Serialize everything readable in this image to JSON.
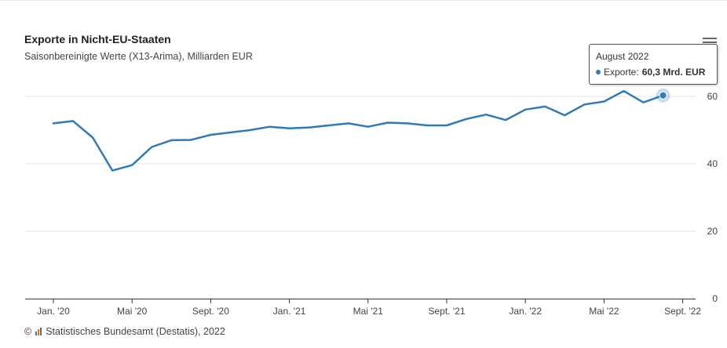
{
  "header": {
    "title": "Exporte in Nicht-EU-Staaten",
    "subtitle": "Saisonbereinigte Werte (X13-Arima), Milliarden EUR"
  },
  "credit": {
    "symbol": "©",
    "text": "Statistisches Bundesamt (Destatis), 2022"
  },
  "menu_icon": "hamburger-menu-icon",
  "colors": {
    "line": "#2f7ab9",
    "grid": "#e6e6e6",
    "axis": "#333333",
    "logo": [
      "#2f7ab9",
      "#e07b00",
      "#666666"
    ]
  },
  "tooltip": {
    "date": "August 2022",
    "series_label": "Exporte:",
    "value": "60,3 Mrd. EUR"
  },
  "chart_data": {
    "type": "line",
    "title": "Exporte in Nicht-EU-Staaten",
    "subtitle": "Saisonbereinigte Werte (X13-Arima), Milliarden EUR",
    "ylim": [
      0,
      70
    ],
    "ytick_values": [
      0,
      20,
      40,
      60
    ],
    "y_tick_labels": [
      "0",
      "20",
      "40",
      "60"
    ],
    "y_axis_position": "right",
    "grid": true,
    "x_tick_labels": [
      "Jan. '20",
      "Mai '20",
      "Sept. '20",
      "Jan. '21",
      "Mai '21",
      "Sept. '21",
      "Jan. '22",
      "Mai '22",
      "Sept. '22"
    ],
    "x_tick_months": [
      "2020-01",
      "2020-05",
      "2020-09",
      "2021-01",
      "2021-05",
      "2021-09",
      "2022-01",
      "2022-05",
      "2022-09"
    ],
    "series": [
      {
        "name": "Exporte",
        "x": [
          "2020-01",
          "2020-02",
          "2020-03",
          "2020-04",
          "2020-05",
          "2020-06",
          "2020-07",
          "2020-08",
          "2020-09",
          "2020-10",
          "2020-11",
          "2020-12",
          "2021-01",
          "2021-02",
          "2021-03",
          "2021-04",
          "2021-05",
          "2021-06",
          "2021-07",
          "2021-08",
          "2021-09",
          "2021-10",
          "2021-11",
          "2021-12",
          "2022-01",
          "2022-02",
          "2022-03",
          "2022-04",
          "2022-05",
          "2022-06",
          "2022-07",
          "2022-08"
        ],
        "values": [
          52.0,
          52.7,
          47.8,
          38.0,
          39.6,
          45.0,
          47.0,
          47.1,
          48.6,
          49.3,
          50.0,
          51.0,
          50.5,
          50.8,
          51.4,
          52.0,
          51.0,
          52.2,
          52.0,
          51.4,
          51.4,
          53.3,
          54.6,
          53.0,
          56.1,
          57.0,
          54.4,
          57.6,
          58.5,
          61.6,
          58.2,
          60.3
        ]
      }
    ],
    "highlight": {
      "x": "2022-08",
      "value": 60.3
    }
  }
}
